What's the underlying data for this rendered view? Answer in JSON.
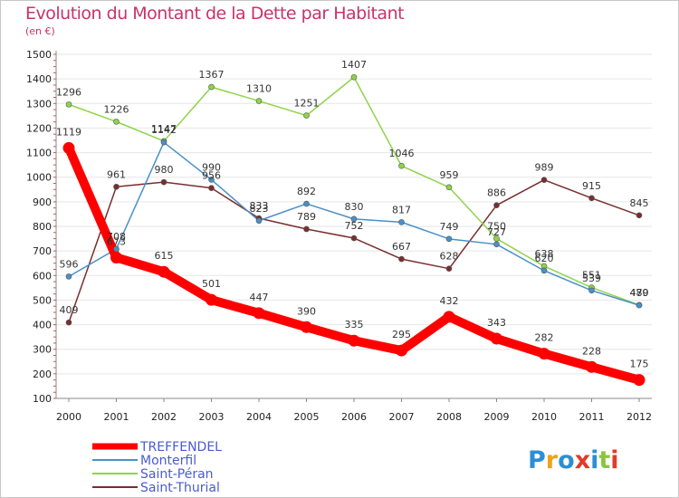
{
  "title": "Evolution du Montant de la Dette par Habitant",
  "subtitle": "(en €)",
  "logo": "Proxiti",
  "chart_data": {
    "type": "line",
    "title": "Evolution du Montant de la Dette par Habitant",
    "ylabel": "(en €)",
    "xlabel": "",
    "ylim": [
      100,
      1500
    ],
    "ytick_labels": [
      "100",
      "200",
      "300",
      "400",
      "500",
      "600",
      "700",
      "800",
      "900",
      "1000",
      "1100",
      "1200",
      "1300",
      "1400",
      "1500"
    ],
    "categories": [
      "2000",
      "2001",
      "2002",
      "2003",
      "2004",
      "2005",
      "2006",
      "2007",
      "2008",
      "2009",
      "2010",
      "2011",
      "2012"
    ],
    "legend_position": "bottom-left",
    "grid": "horizontal",
    "series": [
      {
        "name": "TREFFENDEL",
        "color": "#ff0000",
        "values": [
          1119,
          673,
          615,
          501,
          447,
          390,
          335,
          295,
          432,
          343,
          282,
          228,
          175
        ],
        "labels": [
          "1119",
          "673",
          "615",
          "501",
          "447",
          "390",
          "335",
          "295",
          "432",
          "343",
          "282",
          "228",
          "175"
        ]
      },
      {
        "name": "Monterfil",
        "color": "#4a90c8",
        "values": [
          596,
          708,
          1142,
          990,
          823,
          892,
          830,
          817,
          749,
          727,
          620,
          539,
          479
        ],
        "labels": [
          "596",
          "708",
          "1142",
          "990",
          "823",
          "892",
          "830",
          "817",
          "749",
          "727",
          "620",
          "539",
          "479"
        ]
      },
      {
        "name": "Saint-Péran",
        "color": "#8ed44a",
        "values": [
          1296,
          1226,
          1147,
          1367,
          1310,
          1251,
          1407,
          1046,
          959,
          750,
          638,
          551,
          480
        ],
        "labels": [
          "1296",
          "1226",
          "1147",
          "1367",
          "1310",
          "1251",
          "1407",
          "1046",
          "959",
          "750",
          "638",
          "551",
          "480"
        ]
      },
      {
        "name": "Saint-Thurial",
        "color": "#7a2e2e",
        "values": [
          409,
          961,
          980,
          956,
          833,
          789,
          752,
          667,
          628,
          886,
          989,
          915,
          845
        ],
        "labels": [
          "409",
          "961",
          "980",
          "956",
          "833",
          "789",
          "752",
          "667",
          "628",
          "886",
          "989",
          "915",
          "845"
        ]
      }
    ]
  }
}
